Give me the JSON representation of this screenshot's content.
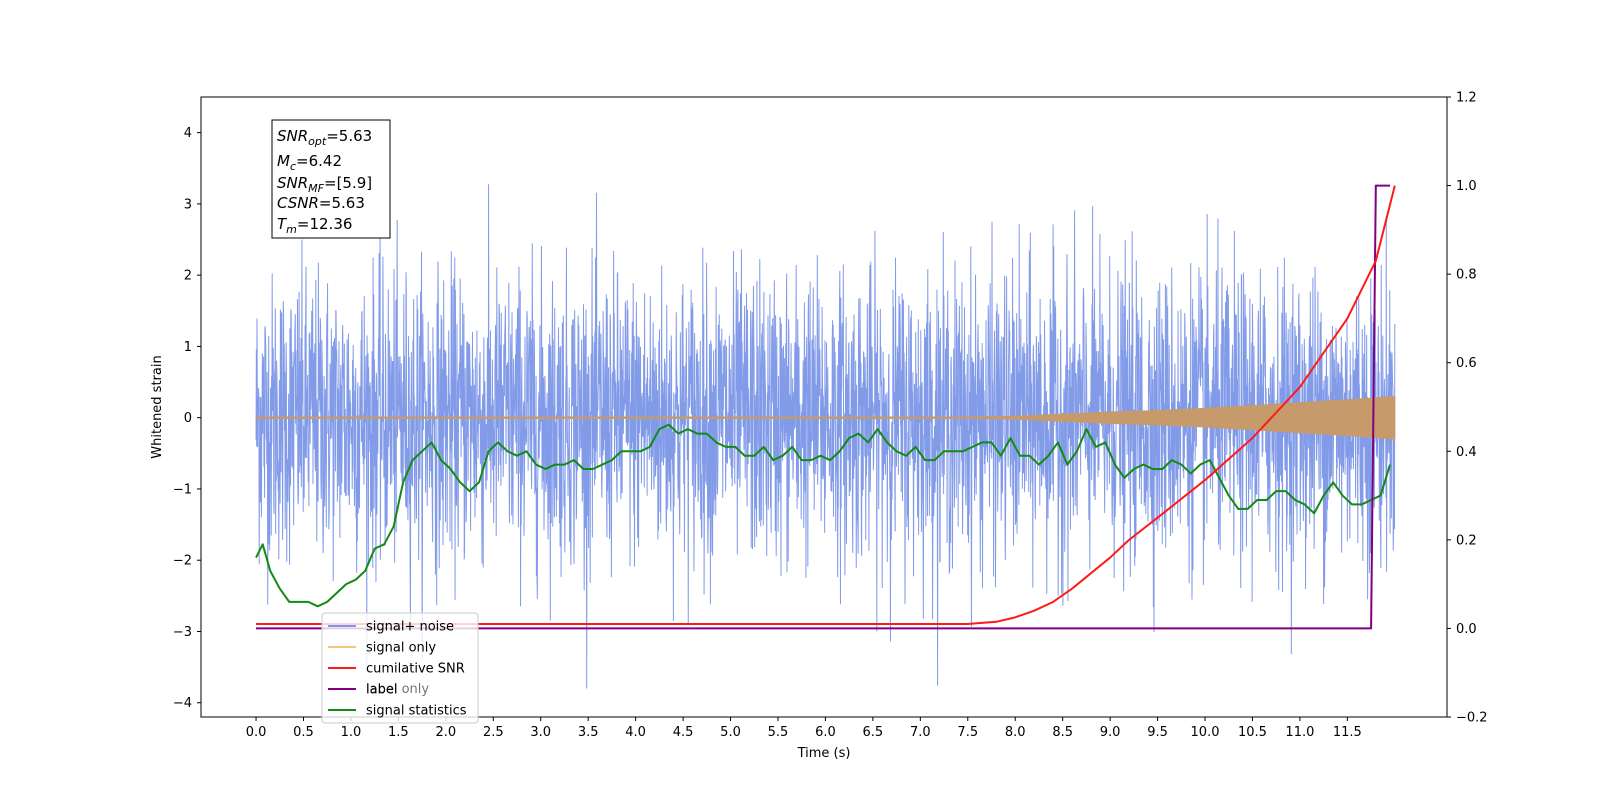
{
  "chart_data": {
    "type": "line",
    "title": "",
    "xlabel": "Time (s)",
    "ylabel": "Whitened strain",
    "y2label": "",
    "xlim": [
      -0.58,
      12.55
    ],
    "ylim": [
      -4.2,
      4.5
    ],
    "y2lim": [
      -0.2,
      1.2
    ],
    "x_ticks": [
      "0.0",
      "0.5",
      "1.0",
      "1.5",
      "2.0",
      "2.5",
      "3.0",
      "3.5",
      "4.0",
      "4.5",
      "5.0",
      "5.5",
      "6.0",
      "6.5",
      "7.0",
      "7.5",
      "8.0",
      "8.5",
      "9.0",
      "9.5",
      "10.0",
      "10.5",
      "11.0",
      "11.5"
    ],
    "y_ticks": [
      "4",
      "3",
      "2",
      "1",
      "0",
      "−1",
      "−2",
      "−3",
      "−4"
    ],
    "y2_ticks": [
      "1.2",
      "1.0",
      "0.8",
      "0.6",
      "0.4",
      "0.2",
      "0.0",
      "−0.2"
    ],
    "annotation_lines": [
      {
        "var": "SNR",
        "sub": "opt",
        "value": "=5.63"
      },
      {
        "var": "M",
        "sub": "c",
        "value": "=6.42"
      },
      {
        "var": "SNR",
        "sub": "MF",
        "value": "=[5.9]"
      },
      {
        "var": "CSNR",
        "sub": "",
        "value": "=5.63"
      },
      {
        "var": "T",
        "sub": "m",
        "value": "=12.36"
      }
    ],
    "legend": {
      "location": "lower-left",
      "entries": [
        {
          "label": "signal+ noise",
          "color": "#7b96e8"
        },
        {
          "label": "signal only",
          "color": "#f5c77a"
        },
        {
          "label": "cumilative SNR",
          "color": "#ff1a1a"
        },
        {
          "label": "label",
          "color": "#800080"
        },
        {
          "label": "signal statistics",
          "color": "#138a13"
        }
      ]
    },
    "legend_hidden_text": "label only",
    "series": [
      {
        "name": "signal+ noise",
        "axis": "left",
        "color": "#7b96e8",
        "x_range": [
          0.0,
          12.0
        ],
        "mean": 0.0,
        "std": 1.0,
        "min": -3.8,
        "max": 4.1
      },
      {
        "name": "signal only",
        "axis": "left",
        "color": "#c69a6b",
        "x": [
          0.0,
          7.5,
          8.0,
          8.5,
          9.0,
          9.5,
          10.0,
          10.5,
          11.0,
          11.5,
          12.0
        ],
        "envelope": [
          0.01,
          0.01,
          0.02,
          0.05,
          0.08,
          0.1,
          0.13,
          0.17,
          0.21,
          0.25,
          0.3
        ]
      },
      {
        "name": "cumilative SNR",
        "axis": "right",
        "color": "#ff1a1a",
        "x": [
          0.0,
          7.5,
          7.8,
          8.0,
          8.2,
          8.4,
          8.6,
          8.8,
          9.0,
          9.2,
          9.5,
          10.0,
          10.5,
          11.0,
          11.5,
          11.8,
          12.0
        ],
        "values": [
          0.01,
          0.01,
          0.015,
          0.025,
          0.04,
          0.06,
          0.09,
          0.125,
          0.16,
          0.2,
          0.25,
          0.335,
          0.43,
          0.545,
          0.7,
          0.83,
          1.0
        ]
      },
      {
        "name": "label",
        "axis": "right",
        "color": "#800080",
        "x": [
          0.0,
          11.75,
          11.8,
          11.95
        ],
        "values": [
          0.0,
          0.0,
          1.0,
          1.0
        ]
      },
      {
        "name": "signal statistics",
        "axis": "right",
        "color": "#138a13",
        "x": [
          0.0,
          0.07,
          0.15,
          0.25,
          0.35,
          0.45,
          0.55,
          0.65,
          0.75,
          0.85,
          0.95,
          1.05,
          1.15,
          1.25,
          1.35,
          1.45,
          1.55,
          1.65,
          1.75,
          1.85,
          1.95,
          2.05,
          2.15,
          2.25,
          2.35,
          2.45,
          2.55,
          2.65,
          2.75,
          2.85,
          2.95,
          3.05,
          3.15,
          3.25,
          3.35,
          3.45,
          3.55,
          3.65,
          3.75,
          3.85,
          3.95,
          4.05,
          4.15,
          4.25,
          4.35,
          4.45,
          4.55,
          4.65,
          4.75,
          4.85,
          4.95,
          5.05,
          5.15,
          5.25,
          5.35,
          5.45,
          5.55,
          5.65,
          5.75,
          5.85,
          5.95,
          6.05,
          6.15,
          6.25,
          6.35,
          6.45,
          6.55,
          6.65,
          6.75,
          6.85,
          6.95,
          7.05,
          7.15,
          7.25,
          7.35,
          7.45,
          7.55,
          7.65,
          7.75,
          7.85,
          7.95,
          8.05,
          8.15,
          8.25,
          8.35,
          8.45,
          8.55,
          8.65,
          8.75,
          8.85,
          8.95,
          9.05,
          9.15,
          9.25,
          9.35,
          9.45,
          9.55,
          9.65,
          9.75,
          9.85,
          9.95,
          10.05,
          10.15,
          10.25,
          10.35,
          10.45,
          10.55,
          10.65,
          10.75,
          10.85,
          10.95,
          11.05,
          11.15,
          11.25,
          11.35,
          11.45,
          11.55,
          11.65,
          11.75,
          11.85,
          11.95
        ],
        "values": [
          0.16,
          0.19,
          0.13,
          0.09,
          0.06,
          0.06,
          0.06,
          0.05,
          0.06,
          0.08,
          0.1,
          0.11,
          0.13,
          0.18,
          0.19,
          0.23,
          0.33,
          0.38,
          0.4,
          0.42,
          0.38,
          0.36,
          0.33,
          0.31,
          0.33,
          0.4,
          0.42,
          0.4,
          0.39,
          0.4,
          0.37,
          0.36,
          0.37,
          0.37,
          0.38,
          0.36,
          0.36,
          0.37,
          0.38,
          0.4,
          0.4,
          0.4,
          0.41,
          0.45,
          0.46,
          0.44,
          0.45,
          0.44,
          0.44,
          0.42,
          0.41,
          0.41,
          0.39,
          0.39,
          0.41,
          0.38,
          0.39,
          0.41,
          0.38,
          0.38,
          0.39,
          0.38,
          0.4,
          0.43,
          0.44,
          0.42,
          0.45,
          0.42,
          0.4,
          0.39,
          0.41,
          0.38,
          0.38,
          0.4,
          0.4,
          0.4,
          0.41,
          0.42,
          0.42,
          0.39,
          0.43,
          0.39,
          0.39,
          0.37,
          0.39,
          0.42,
          0.37,
          0.4,
          0.45,
          0.41,
          0.42,
          0.37,
          0.34,
          0.36,
          0.37,
          0.36,
          0.36,
          0.38,
          0.37,
          0.35,
          0.37,
          0.38,
          0.34,
          0.3,
          0.27,
          0.27,
          0.29,
          0.29,
          0.31,
          0.31,
          0.29,
          0.28,
          0.26,
          0.3,
          0.33,
          0.3,
          0.28,
          0.28,
          0.29,
          0.3,
          0.37
        ]
      }
    ]
  }
}
